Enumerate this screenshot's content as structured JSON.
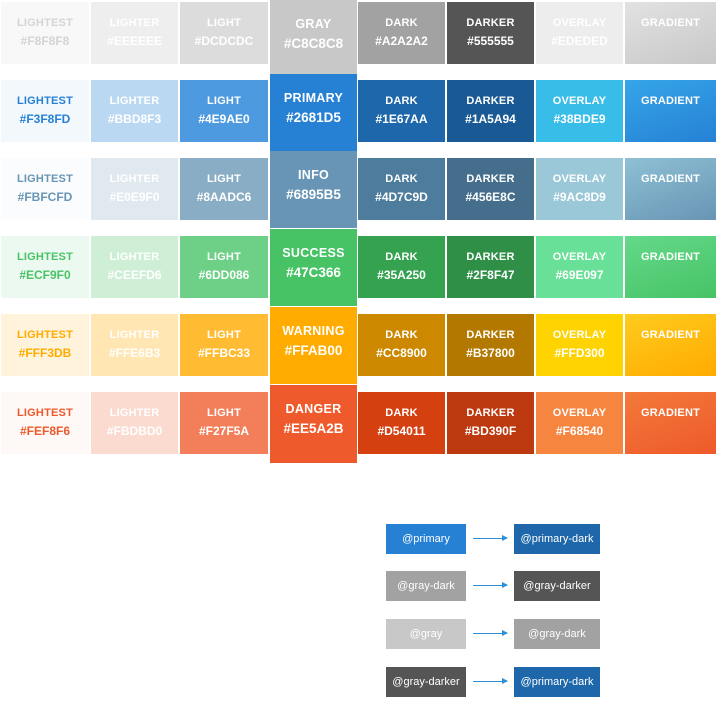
{
  "palette": {
    "rows": [
      {
        "id": "gray",
        "swatches": [
          {
            "label": "LIGHTEST",
            "hex": "#F8F8F8",
            "bg": "#F8F8F8",
            "fg": "#d4d4d4"
          },
          {
            "label": "LIGHTER",
            "hex": "#EEEEEE",
            "bg": "#EEEEEE",
            "fg": "#ffffff"
          },
          {
            "label": "LIGHT",
            "hex": "#DCDCDC",
            "bg": "#DCDCDC",
            "fg": "#ffffff"
          },
          {
            "label": "DARK",
            "hex": "#A2A2A2",
            "bg": "#A2A2A2",
            "fg": "#ffffff"
          },
          {
            "label": "DARKER",
            "hex": "#555555",
            "bg": "#555555",
            "fg": "#ffffff"
          },
          {
            "label": "OVERLAY",
            "hex": "#EDEDED",
            "bg": "#EDEDED",
            "fg": "#ffffff"
          },
          {
            "label": "GRADIENT",
            "hex": "",
            "bg": "#c8c8c8",
            "fg": "#ffffff",
            "grad": [
              "#e2e2e2",
              "#c8c8c8"
            ]
          }
        ],
        "base": {
          "label": "GRAY",
          "hex": "#C8C8C8",
          "bg": "#C8C8C8"
        }
      },
      {
        "id": "primary",
        "swatches": [
          {
            "label": "LIGHTEST",
            "hex": "#F3F8FD",
            "bg": "#F3F8FD",
            "fg": "#2681D5"
          },
          {
            "label": "LIGHTER",
            "hex": "#BBD8F3",
            "bg": "#BBD8F3",
            "fg": "#ffffff"
          },
          {
            "label": "LIGHT",
            "hex": "#4E9AE0",
            "bg": "#4E9AE0",
            "fg": "#ffffff"
          },
          {
            "label": "DARK",
            "hex": "#1E67AA",
            "bg": "#1E67AA",
            "fg": "#ffffff"
          },
          {
            "label": "DARKER",
            "hex": "#1A5A94",
            "bg": "#1A5A94",
            "fg": "#ffffff"
          },
          {
            "label": "OVERLAY",
            "hex": "#38BDE9",
            "bg": "#38BDE9",
            "fg": "#ffffff"
          },
          {
            "label": "GRADIENT",
            "hex": "",
            "bg": "#2681D5",
            "fg": "#ffffff",
            "grad": [
              "#35a5e8",
              "#2681D5"
            ]
          }
        ],
        "base": {
          "label": "PRIMARY",
          "hex": "#2681D5",
          "bg": "#2681D5"
        }
      },
      {
        "id": "info",
        "swatches": [
          {
            "label": "LIGHTEST",
            "hex": "#FBFCFD",
            "bg": "#FBFCFD",
            "fg": "#6895B5"
          },
          {
            "label": "LIGHTER",
            "hex": "#E0E9F0",
            "bg": "#E0E9F0",
            "fg": "#ffffff"
          },
          {
            "label": "LIGHT",
            "hex": "#8AADC6",
            "bg": "#8AADC6",
            "fg": "#ffffff"
          },
          {
            "label": "DARK",
            "hex": "#4D7C9D",
            "bg": "#4D7C9D",
            "fg": "#ffffff"
          },
          {
            "label": "DARKER",
            "hex": "#456E8C",
            "bg": "#456E8C",
            "fg": "#ffffff"
          },
          {
            "label": "OVERLAY",
            "hex": "#9AC8D9",
            "bg": "#9AC8D9",
            "fg": "#ffffff"
          },
          {
            "label": "GRADIENT",
            "hex": "",
            "bg": "#6895B5",
            "fg": "#ffffff",
            "grad": [
              "#8fc0d4",
              "#6895B5"
            ]
          }
        ],
        "base": {
          "label": "INFO",
          "hex": "#6895B5",
          "bg": "#6895B5"
        }
      },
      {
        "id": "success",
        "swatches": [
          {
            "label": "LIGHTEST",
            "hex": "#ECF9F0",
            "bg": "#ECF9F0",
            "fg": "#47C366"
          },
          {
            "label": "LIGHTER",
            "hex": "#CEEFD6",
            "bg": "#CEEFD6",
            "fg": "#ffffff"
          },
          {
            "label": "LIGHT",
            "hex": "#6DD086",
            "bg": "#6DD086",
            "fg": "#ffffff"
          },
          {
            "label": "DARK",
            "hex": "#35A250",
            "bg": "#35A250",
            "fg": "#ffffff"
          },
          {
            "label": "DARKER",
            "hex": "#2F8F47",
            "bg": "#2F8F47",
            "fg": "#ffffff"
          },
          {
            "label": "OVERLAY",
            "hex": "#69E097",
            "bg": "#69E097",
            "fg": "#ffffff"
          },
          {
            "label": "GRADIENT",
            "hex": "",
            "bg": "#47C366",
            "fg": "#ffffff",
            "grad": [
              "#64d98a",
              "#47C366"
            ]
          }
        ],
        "base": {
          "label": "SUCCESS",
          "hex": "#47C366",
          "bg": "#47C366"
        }
      },
      {
        "id": "warning",
        "swatches": [
          {
            "label": "LIGHTEST",
            "hex": "#FFF3DB",
            "bg": "#FFF3DB",
            "fg": "#FFAB00"
          },
          {
            "label": "LIGHTER",
            "hex": "#FFE6B3",
            "bg": "#FFE6B3",
            "fg": "#ffffff"
          },
          {
            "label": "LIGHT",
            "hex": "#FFBC33",
            "bg": "#FFBC33",
            "fg": "#ffffff"
          },
          {
            "label": "DARK",
            "hex": "#CC8900",
            "bg": "#CC8900",
            "fg": "#ffffff"
          },
          {
            "label": "DARKER",
            "hex": "#B37800",
            "bg": "#B37800",
            "fg": "#ffffff"
          },
          {
            "label": "OVERLAY",
            "hex": "#FFD300",
            "bg": "#FFD300",
            "fg": "#ffffff"
          },
          {
            "label": "GRADIENT",
            "hex": "",
            "bg": "#FFAB00",
            "fg": "#ffffff",
            "grad": [
              "#ffcb1f",
              "#FFAB00"
            ]
          }
        ],
        "base": {
          "label": "WARNING",
          "hex": "#FFAB00",
          "bg": "#FFAB00"
        }
      },
      {
        "id": "danger",
        "swatches": [
          {
            "label": "LIGHTEST",
            "hex": "#FEF8F6",
            "bg": "#FEF8F6",
            "fg": "#EE5A2B"
          },
          {
            "label": "LIGHTER",
            "hex": "#FBDBD0",
            "bg": "#FBDBD0",
            "fg": "#ffffff"
          },
          {
            "label": "LIGHT",
            "hex": "#F27F5A",
            "bg": "#F27F5A",
            "fg": "#ffffff"
          },
          {
            "label": "DARK",
            "hex": "#D54011",
            "bg": "#D54011",
            "fg": "#ffffff"
          },
          {
            "label": "DARKER",
            "hex": "#BD390F",
            "bg": "#BD390F",
            "fg": "#ffffff"
          },
          {
            "label": "OVERLAY",
            "hex": "#F68540",
            "bg": "#F68540",
            "fg": "#ffffff"
          },
          {
            "label": "GRADIENT",
            "hex": "",
            "bg": "#EE5A2B",
            "fg": "#ffffff",
            "grad": [
              "#f3793a",
              "#EE5A2B"
            ]
          }
        ],
        "base": {
          "label": "DANGER",
          "hex": "#EE5A2B",
          "bg": "#EE5A2B"
        }
      }
    ]
  },
  "legend": {
    "rows": [
      {
        "from": "@primary",
        "from_bg": "#2681D5",
        "to": "@primary-dark",
        "to_bg": "#1E67AA"
      },
      {
        "from": "@gray-dark",
        "from_bg": "#A2A2A2",
        "to": "@gray-darker",
        "to_bg": "#555555"
      },
      {
        "from": "@gray",
        "from_bg": "#C8C8C8",
        "to": "@gray-dark",
        "to_bg": "#A2A2A2"
      },
      {
        "from": "@gray-darker",
        "from_bg": "#555555",
        "to": "@primary-dark",
        "to_bg": "#1E67AA"
      }
    ]
  }
}
